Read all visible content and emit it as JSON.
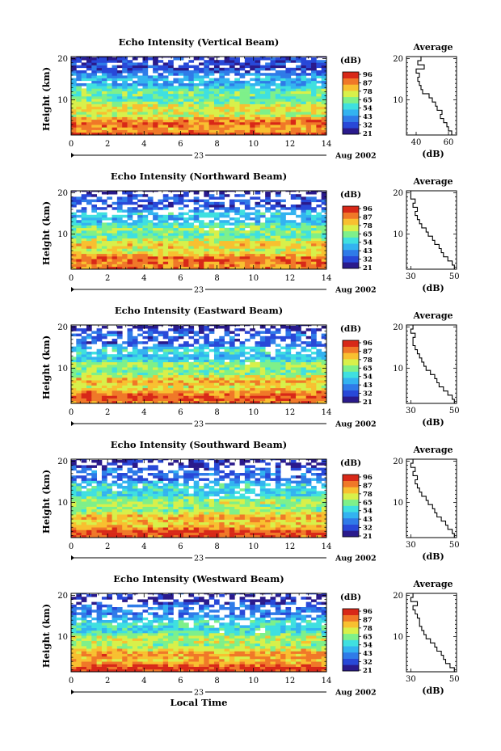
{
  "chart_data": [
    {
      "type": "heatmap",
      "title": "Echo Intensity (Vertical Beam)",
      "ylabel": "Height (km)",
      "xticks": [
        "0",
        "2",
        "4",
        "6",
        "8",
        "10",
        "12",
        "14"
      ],
      "yticks": [
        "10",
        "20"
      ],
      "xlim": [
        0,
        14
      ],
      "ylim": [
        1.5,
        20.5
      ],
      "date_day": "23",
      "date_label": "Aug 2002",
      "profile": {
        "title": "Average",
        "xlabel": "(dB)",
        "xticks": [
          "40",
          "60"
        ],
        "xlim": [
          34,
          65
        ],
        "yticks": [
          "10",
          "20"
        ],
        "heights": [
          2,
          3,
          4,
          5,
          6,
          7,
          8,
          9,
          10,
          11,
          12,
          13,
          14,
          15,
          16,
          17,
          18,
          19,
          20
        ],
        "values": [
          62,
          60,
          59,
          57,
          55,
          56,
          53,
          52,
          50,
          48,
          44,
          43,
          42,
          41,
          42,
          40,
          45,
          41,
          43
        ]
      }
    },
    {
      "type": "heatmap",
      "title": "Echo Intensity (Northward Beam)",
      "ylabel": "Height (km)",
      "xticks": [
        "0",
        "2",
        "4",
        "6",
        "8",
        "10",
        "12",
        "14"
      ],
      "yticks": [
        "10",
        "20"
      ],
      "xlim": [
        0,
        14
      ],
      "ylim": [
        1.5,
        20.5
      ],
      "date_day": "23",
      "date_label": "Aug 2002",
      "profile": {
        "title": "Average",
        "xlabel": "(dB)",
        "xticks": [
          "30",
          "50"
        ],
        "xlim": [
          28,
          51
        ],
        "yticks": [
          "10",
          "20"
        ],
        "heights": [
          2,
          3,
          4,
          5,
          6,
          7,
          8,
          9,
          10,
          11,
          12,
          13,
          14,
          15,
          16,
          17,
          18,
          19,
          20
        ],
        "values": [
          50,
          49,
          47,
          45,
          44,
          43,
          41,
          40,
          38,
          37,
          35,
          34,
          33,
          32,
          33,
          31,
          32,
          30,
          30
        ]
      }
    },
    {
      "type": "heatmap",
      "title": "Echo Intensity (Eastward Beam)",
      "ylabel": "Height (km)",
      "xticks": [
        "0",
        "2",
        "4",
        "6",
        "8",
        "10",
        "12",
        "14"
      ],
      "yticks": [
        "10",
        "20"
      ],
      "xlim": [
        0,
        14
      ],
      "ylim": [
        1.5,
        20.5
      ],
      "date_day": "23",
      "date_label": "Aug 2002",
      "profile": {
        "title": "Average",
        "xlabel": "(dB)",
        "xticks": [
          "30",
          "50"
        ],
        "xlim": [
          28,
          51
        ],
        "yticks": [
          "10",
          "20"
        ],
        "heights": [
          2,
          3,
          4,
          5,
          6,
          7,
          8,
          9,
          10,
          11,
          12,
          13,
          14,
          15,
          16,
          17,
          18,
          19,
          20
        ],
        "values": [
          50,
          49,
          47,
          45,
          43,
          42,
          41,
          39,
          37,
          36,
          35,
          34,
          33,
          32,
          31,
          31,
          32,
          30,
          31
        ]
      }
    },
    {
      "type": "heatmap",
      "title": "Echo Intensity (Southward Beam)",
      "ylabel": "Height (km)",
      "xticks": [
        "0",
        "2",
        "4",
        "6",
        "8",
        "10",
        "12",
        "14"
      ],
      "yticks": [
        "10",
        "20"
      ],
      "xlim": [
        0,
        14
      ],
      "ylim": [
        1.5,
        20.5
      ],
      "date_day": "23",
      "date_label": "Aug 2002",
      "profile": {
        "title": "Average",
        "xlabel": "(dB)",
        "xticks": [
          "30",
          "50"
        ],
        "xlim": [
          28,
          51
        ],
        "yticks": [
          "10",
          "20"
        ],
        "heights": [
          2,
          3,
          4,
          5,
          6,
          7,
          8,
          9,
          10,
          11,
          12,
          13,
          14,
          15,
          16,
          17,
          18,
          19,
          20
        ],
        "values": [
          50,
          49,
          47,
          46,
          44,
          42,
          41,
          40,
          38,
          37,
          35,
          34,
          33,
          32,
          33,
          31,
          32,
          30,
          31
        ]
      }
    },
    {
      "type": "heatmap",
      "title": "Echo Intensity (Westward Beam)",
      "ylabel": "Height (km)",
      "xticks": [
        "0",
        "2",
        "4",
        "6",
        "8",
        "10",
        "12",
        "14"
      ],
      "yticks": [
        "10",
        "20"
      ],
      "xlim": [
        0,
        14
      ],
      "ylim": [
        1.5,
        20.5
      ],
      "date_day": "23",
      "date_label": "Aug 2002",
      "xlabel": "Local Time",
      "profile": {
        "title": "Average",
        "xlabel": "(dB)",
        "xticks": [
          "30",
          "50"
        ],
        "xlim": [
          28,
          51
        ],
        "yticks": [
          "10",
          "20"
        ],
        "heights": [
          2,
          3,
          4,
          5,
          6,
          7,
          8,
          9,
          10,
          11,
          12,
          13,
          14,
          15,
          16,
          17,
          18,
          19,
          20
        ],
        "values": [
          50,
          48,
          46,
          45,
          44,
          42,
          41,
          39,
          37,
          36,
          35,
          34,
          34,
          33,
          32,
          31,
          33,
          30,
          31
        ]
      }
    }
  ],
  "colorbar": {
    "label": "(dB)",
    "ticks": [
      "96",
      "87",
      "78",
      "65",
      "54",
      "43",
      "32",
      "21"
    ],
    "colors": [
      "#2a1a8c",
      "#2848d8",
      "#2f7be8",
      "#33b3f0",
      "#3fe0e0",
      "#7ef08a",
      "#d8f04a",
      "#f8c030",
      "#f07828",
      "#d82818"
    ]
  },
  "heatmap_palette": {
    "empty": "#ffffff"
  }
}
